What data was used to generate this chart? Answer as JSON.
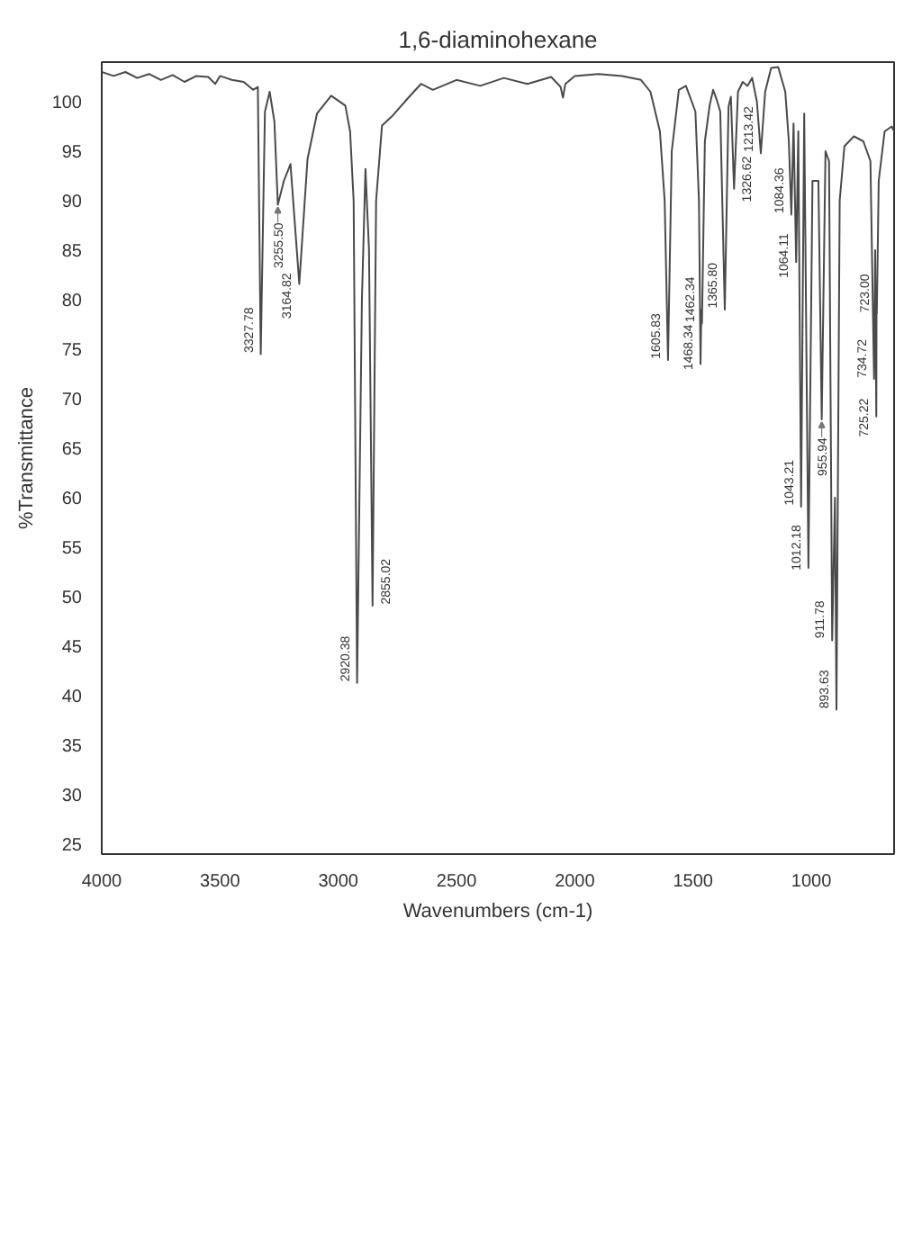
{
  "chart_data": {
    "type": "line",
    "title": "1,6-diaminohexane",
    "xlabel": "Wavenumbers (cm-1)",
    "ylabel": "%Transmittance",
    "xlim": [
      4000,
      650
    ],
    "ylim": [
      24,
      104
    ],
    "xticks": [
      4000,
      3500,
      3000,
      2500,
      2000,
      1500,
      1000
    ],
    "yticks": [
      25,
      30,
      35,
      40,
      45,
      50,
      55,
      60,
      65,
      70,
      75,
      80,
      85,
      90,
      95,
      100
    ],
    "grid": false,
    "line_style": "solid",
    "color": "#4a4a4a",
    "x": [
      4000,
      3950,
      3900,
      3850,
      3800,
      3750,
      3700,
      3650,
      3600,
      3550,
      3520,
      3500,
      3450,
      3400,
      3360,
      3340,
      3327.78,
      3310,
      3290,
      3270,
      3255.5,
      3230,
      3202,
      3164.82,
      3130,
      3090,
      3030,
      2970,
      2950,
      2935,
      2920.38,
      2900,
      2885,
      2870,
      2855.02,
      2840,
      2815,
      2770,
      2700,
      2650,
      2600,
      2500,
      2400,
      2300,
      2200,
      2100,
      2060,
      2050,
      2040,
      2000,
      1900,
      1800,
      1720,
      1680,
      1640,
      1620,
      1605.83,
      1590,
      1560,
      1530,
      1490,
      1475,
      1468.34,
      1465,
      1462.34,
      1450,
      1430,
      1415,
      1400,
      1385,
      1365.8,
      1350,
      1340,
      1326.62,
      1310,
      1290,
      1270,
      1250,
      1230,
      1213.42,
      1195,
      1170,
      1140,
      1110,
      1095,
      1084.36,
      1075,
      1064.11,
      1055,
      1043.21,
      1030,
      1012.18,
      995,
      970,
      955.94,
      940,
      925,
      911.78,
      900,
      893.63,
      880,
      860,
      820,
      780,
      750,
      734.72,
      730,
      725.22,
      724.1,
      723.0,
      715,
      690,
      660,
      650
    ],
    "values": [
      103.0,
      102.6,
      103.0,
      102.4,
      102.8,
      102.2,
      102.7,
      102.0,
      102.6,
      102.5,
      101.8,
      102.6,
      102.2,
      102.0,
      101.2,
      101.5,
      74.5,
      99.0,
      101.0,
      98.0,
      89.6,
      92.0,
      93.7,
      81.6,
      94.2,
      98.8,
      100.6,
      99.6,
      97.0,
      90.0,
      41.3,
      80.0,
      93.2,
      85.0,
      49.1,
      90.0,
      97.6,
      98.6,
      100.5,
      101.8,
      101.2,
      102.2,
      101.6,
      102.4,
      101.8,
      102.5,
      101.5,
      100.4,
      101.8,
      102.6,
      102.8,
      102.6,
      102.2,
      101.0,
      97.0,
      90.0,
      73.9,
      95.0,
      101.2,
      101.6,
      99.0,
      90.0,
      73.5,
      79.0,
      77.6,
      96.0,
      99.6,
      101.2,
      100.2,
      99.0,
      79.0,
      99.5,
      100.5,
      91.2,
      101.0,
      102.0,
      101.6,
      102.4,
      100.0,
      94.8,
      101.0,
      103.4,
      103.5,
      101.0,
      96.0,
      88.6,
      97.8,
      83.8,
      97.0,
      59.1,
      98.8,
      52.9,
      92.0,
      92.0,
      67.9,
      95.0,
      94.0,
      45.6,
      60.0,
      38.6,
      90.0,
      95.5,
      96.5,
      96.0,
      94.0,
      72.0,
      85.0,
      68.2,
      80.0,
      78.6,
      92.0,
      97.0,
      97.5,
      97.0
    ],
    "annotations": [
      {
        "text": "3327.78",
        "x": 3327.78,
        "y": 74.5
      },
      {
        "text": "3255.50",
        "x": 3255.5,
        "y": 89.6
      },
      {
        "text": "3164.82",
        "x": 3164.82,
        "y": 81.6
      },
      {
        "text": "2920.38",
        "x": 2920.38,
        "y": 41.3
      },
      {
        "text": "2855.02",
        "x": 2855.02,
        "y": 49.1
      },
      {
        "text": "1605.83",
        "x": 1605.83,
        "y": 73.9
      },
      {
        "text": "1468.34",
        "x": 1468.34,
        "y": 73.5
      },
      {
        "text": "1462.34",
        "x": 1462.34,
        "y": 77.6
      },
      {
        "text": "1365.80",
        "x": 1365.8,
        "y": 79.0
      },
      {
        "text": "1326.62",
        "x": 1326.62,
        "y": 91.2
      },
      {
        "text": "1213.42",
        "x": 1213.42,
        "y": 94.8
      },
      {
        "text": "1084.36",
        "x": 1084.36,
        "y": 88.6
      },
      {
        "text": "1064.11",
        "x": 1064.11,
        "y": 83.8
      },
      {
        "text": "1043.21",
        "x": 1043.21,
        "y": 59.1
      },
      {
        "text": "1012.18",
        "x": 1012.18,
        "y": 52.9
      },
      {
        "text": "955.94",
        "x": 955.94,
        "y": 67.9
      },
      {
        "text": "911.78",
        "x": 911.78,
        "y": 45.6
      },
      {
        "text": "893.63",
        "x": 893.63,
        "y": 38.6
      },
      {
        "text": "734.72",
        "x": 734.72,
        "y": 72.0
      },
      {
        "text": "725.22",
        "x": 725.22,
        "y": 68.2
      },
      {
        "text": "723.00",
        "x": 723.0,
        "y": 78.6
      }
    ]
  }
}
